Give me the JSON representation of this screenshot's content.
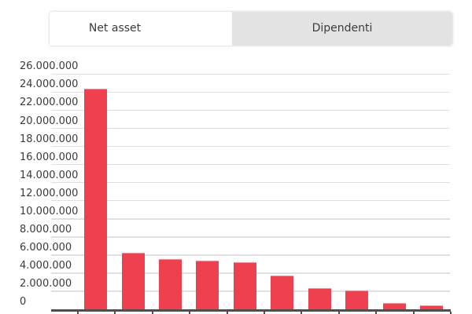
{
  "tabs": {
    "net_asset": {
      "label": "Net asset",
      "active": true
    },
    "dipendenti": {
      "label": "Dipendenti",
      "active": false
    }
  },
  "chart_data": {
    "type": "bar",
    "title": "Net asset",
    "xlabel": "",
    "ylabel": "",
    "categories": [
      "",
      "",
      "",
      "",
      "",
      "",
      "",
      "",
      "",
      ""
    ],
    "series": [
      {
        "name": "Net asset",
        "values": [
          24500000,
          6300000,
          5600000,
          5500000,
          5300000,
          3850000,
          2450000,
          2150000,
          800000,
          550000
        ]
      }
    ],
    "y_axis": {
      "min": 0,
      "max": 26000000,
      "step": 2000000,
      "tick_labels": [
        "0",
        "2.000.000",
        "4.000.000",
        "6.000.000",
        "8.000.000",
        "10.000.000",
        "12.000.000",
        "14.000.000",
        "16.000.000",
        "18.000.000",
        "20.000.000",
        "22.000.000",
        "24.000.000",
        "26.000.000"
      ]
    },
    "grid": true,
    "legend_position": "none",
    "colors": {
      "bar_color": "#ee404f",
      "bar_highlight": "#f6929a",
      "grid_color": "#e0e0e0",
      "axis_color": "#4f4f4f",
      "axis_text": "#3a3a3a",
      "tab_active_bg": "#ffffff",
      "tab_inactive_bg": "#e3e3e3",
      "tab_text": "#3c3c3c"
    }
  }
}
